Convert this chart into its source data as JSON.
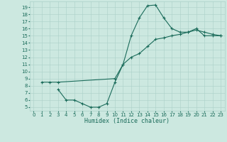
{
  "xlabel": "Humidex (Indice chaleur)",
  "bg_color": "#cce8e0",
  "grid_color": "#aad0c8",
  "line_color": "#1a6b5a",
  "curve1_x": [
    1,
    2,
    3,
    10,
    11,
    12,
    13,
    14,
    15,
    16,
    17,
    18,
    19,
    20,
    21,
    22,
    23
  ],
  "curve1_y": [
    8.5,
    8.5,
    8.5,
    9.0,
    11.0,
    15.0,
    17.5,
    19.2,
    19.3,
    17.5,
    16.0,
    15.5,
    15.5,
    16.0,
    15.0,
    15.0,
    15.0
  ],
  "curve2_x": [
    3,
    4,
    5,
    6,
    7,
    8,
    9,
    10,
    11,
    12,
    13,
    14,
    15,
    16,
    17,
    18,
    19,
    20,
    21,
    22,
    23
  ],
  "curve2_y": [
    7.5,
    6.0,
    6.0,
    5.5,
    5.0,
    5.0,
    5.5,
    8.5,
    11.0,
    12.0,
    12.5,
    13.5,
    14.5,
    14.7,
    15.0,
    15.2,
    15.5,
    15.8,
    15.5,
    15.2,
    15.0
  ],
  "xlim": [
    -0.5,
    23.5
  ],
  "ylim": [
    4.5,
    19.8
  ],
  "xticks": [
    0,
    1,
    2,
    3,
    4,
    5,
    6,
    7,
    8,
    9,
    10,
    11,
    12,
    13,
    14,
    15,
    16,
    17,
    18,
    19,
    20,
    21,
    22,
    23
  ],
  "yticks": [
    5,
    6,
    7,
    8,
    9,
    10,
    11,
    12,
    13,
    14,
    15,
    16,
    17,
    18,
    19
  ],
  "xlabel_fontsize": 6,
  "tick_fontsize": 5,
  "linewidth": 0.8,
  "markersize": 2.5
}
